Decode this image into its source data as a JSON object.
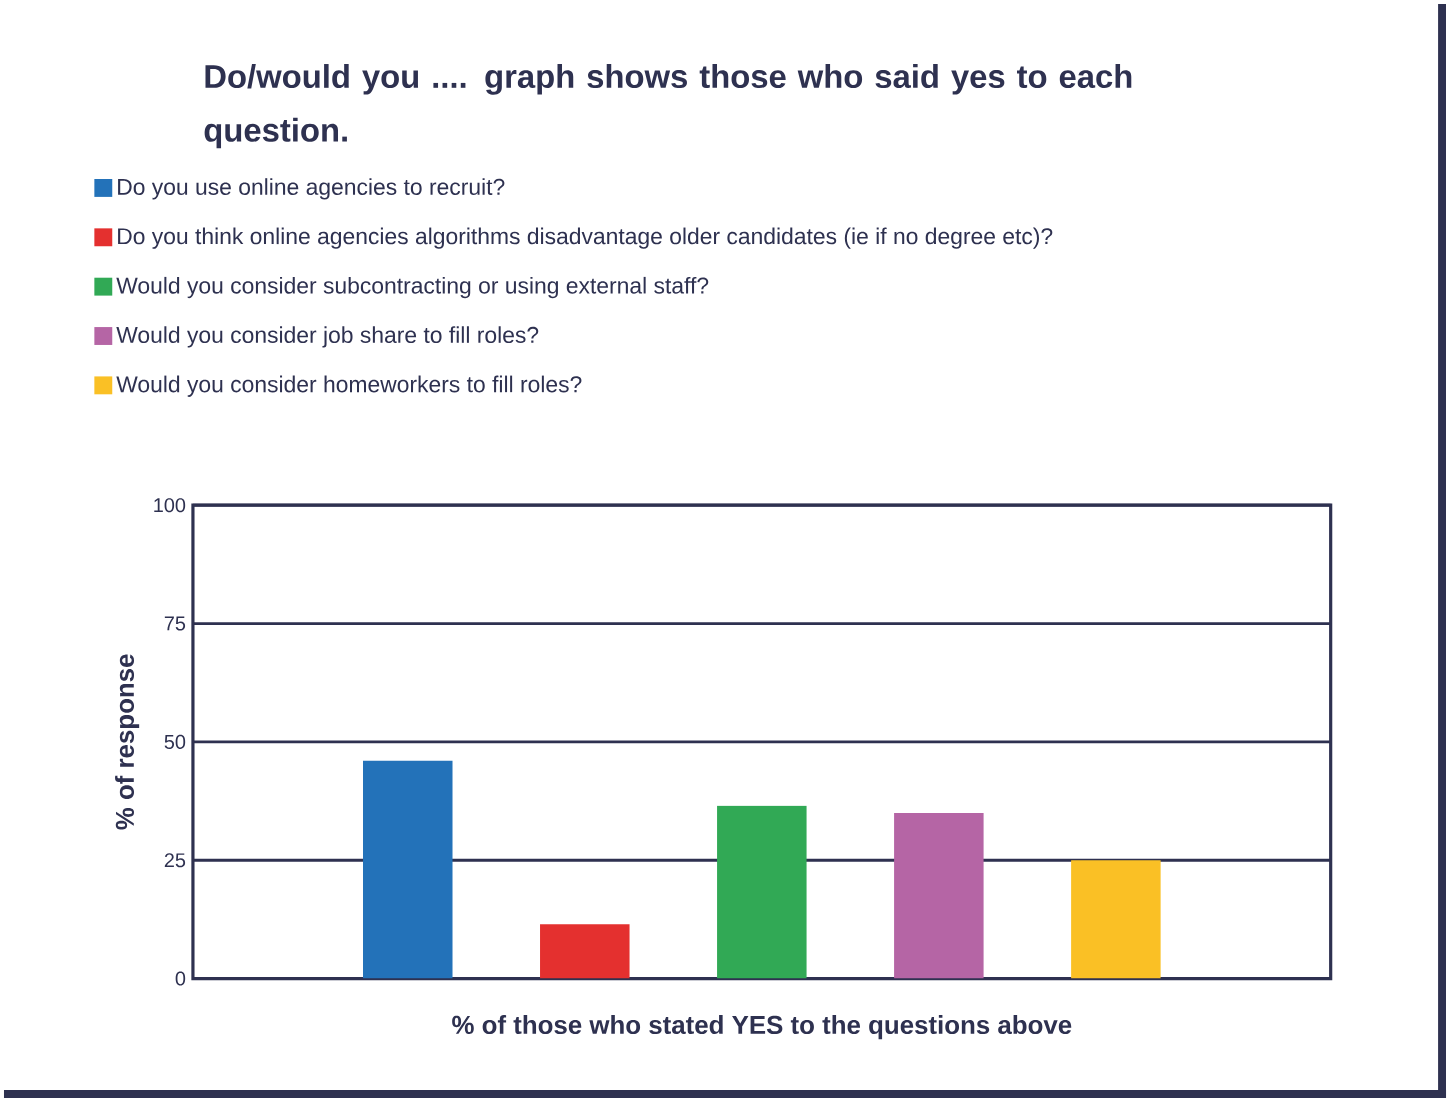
{
  "chart_data": {
    "type": "bar",
    "title": "Do/would you .... graph shows those who said yes to each question.",
    "xlabel": "% of those who stated YES to the questions above",
    "ylabel": "% of response",
    "categories": [
      null
    ],
    "series": [
      {
        "name": "Do you use online agencies to recruit?",
        "color": "#2372b9",
        "values": [
          46
        ]
      },
      {
        "name": "Do you think online agencies algorithms disadvantage older candidates (ie if no degree etc)?",
        "color": "#e4302f",
        "values": [
          11.5
        ]
      },
      {
        "name": "Would you consider subcontracting or using external staff?",
        "color": "#31a955",
        "values": [
          36.5
        ]
      },
      {
        "name": "Would you consider job share to fill roles?",
        "color": "#b565a5",
        "values": [
          35
        ]
      },
      {
        "name": "Would you consider homeworkers to fill roles?",
        "color": "#fac025",
        "values": [
          25
        ]
      }
    ],
    "ylim": [
      0,
      100
    ],
    "yticks": [
      0,
      25,
      50,
      75,
      100
    ],
    "grid": "y",
    "legend": "top"
  }
}
